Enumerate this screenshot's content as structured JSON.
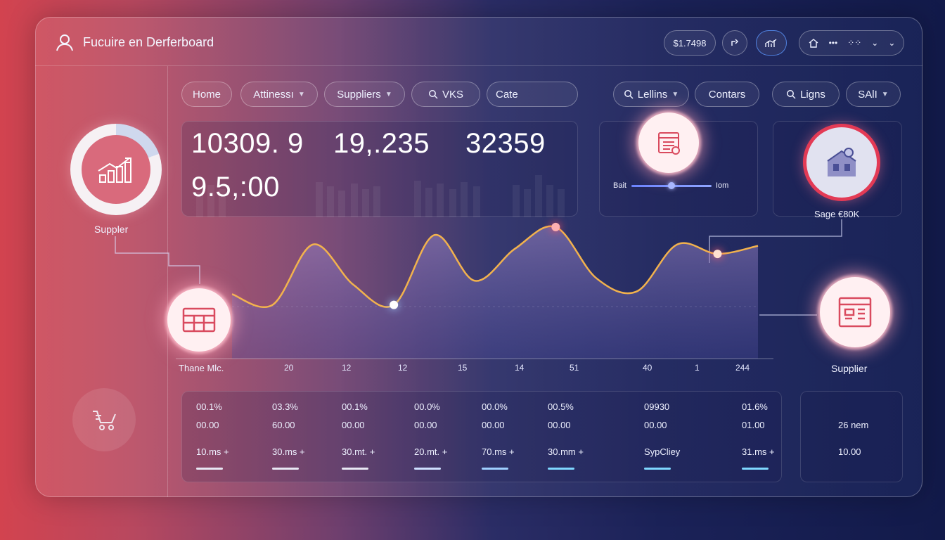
{
  "app": {
    "title": "Fucuire en Derferboard"
  },
  "header_right": {
    "value_pill": "$1.7498"
  },
  "nav": {
    "tabs": [
      {
        "label": "Home",
        "dropdown": false
      },
      {
        "label": "Attinessı",
        "dropdown": true
      },
      {
        "label": "Suppliers",
        "dropdown": true
      },
      {
        "label": "VKS",
        "dropdown": false,
        "search": true
      },
      {
        "label": "Cate",
        "dropdown": false
      }
    ],
    "right": [
      {
        "label": "Lellins",
        "dropdown": true,
        "search": true
      },
      {
        "label": "Contars",
        "dropdown": false
      },
      {
        "label": "Ligns",
        "dropdown": false,
        "search": true
      },
      {
        "label": "SAlI",
        "dropdown": true
      }
    ]
  },
  "stats": {
    "v1": "10309. 9",
    "v2": "19,.235",
    "v3": "32359",
    "v4": "9.5,:00"
  },
  "slider_card": {
    "left": "Bait",
    "right": "Iom",
    "level": 0.5
  },
  "profile_card": {
    "label": "Sage €80K"
  },
  "left_node": {
    "label": "Suppler"
  },
  "right_node": {
    "label": "Supplier"
  },
  "chart_data": {
    "type": "line",
    "title": "",
    "xlabel": "Thane Mlc.",
    "ylabel": "",
    "x_ticks": [
      "20",
      "12",
      "12",
      "15",
      "14",
      "51",
      "40",
      "1",
      "244"
    ],
    "points": [
      [
        0,
        48
      ],
      [
        1,
        40
      ],
      [
        2,
        85
      ],
      [
        3,
        55
      ],
      [
        4,
        40
      ],
      [
        5,
        92
      ],
      [
        6,
        58
      ],
      [
        7,
        82
      ],
      [
        8,
        98
      ],
      [
        9,
        60
      ],
      [
        10,
        50
      ],
      [
        11,
        85
      ],
      [
        12,
        78
      ],
      [
        13,
        84
      ]
    ],
    "ylim": [
      0,
      110
    ],
    "grid": false,
    "colors": {
      "line": "#f2b24d",
      "fill": "#8c7fb8"
    }
  },
  "table": {
    "columns": [
      {
        "a": "00.1%",
        "b": "00.00",
        "c": "10.ms +",
        "bar": "#e8e8f4"
      },
      {
        "a": "03.3%",
        "b": "60.00",
        "c": "30.ms +",
        "bar": "#e8e8f4"
      },
      {
        "a": "00.1%",
        "b": "00.00",
        "c": "30.mt. +",
        "bar": "#e8e8f4"
      },
      {
        "a": "00.0%",
        "b": "00.00",
        "c": "20.mt. +",
        "bar": "#cfe0ff"
      },
      {
        "a": "00.0%",
        "b": "00.00",
        "c": "70.ms +",
        "bar": "#9fd0ff"
      },
      {
        "a": "00.5%",
        "b": "00.00",
        "c": "30.mm +",
        "bar": "#7fd8ff"
      },
      {
        "a": "09930",
        "b": "00.00",
        "c": "SypCliey",
        "bar": "#7fd8ff"
      },
      {
        "a": "01.6%",
        "b": "01.00",
        "c": "31.ms +",
        "bar": "#7fd8ff"
      }
    ],
    "side": {
      "v1": "26 nem",
      "v2": "10.00"
    }
  }
}
